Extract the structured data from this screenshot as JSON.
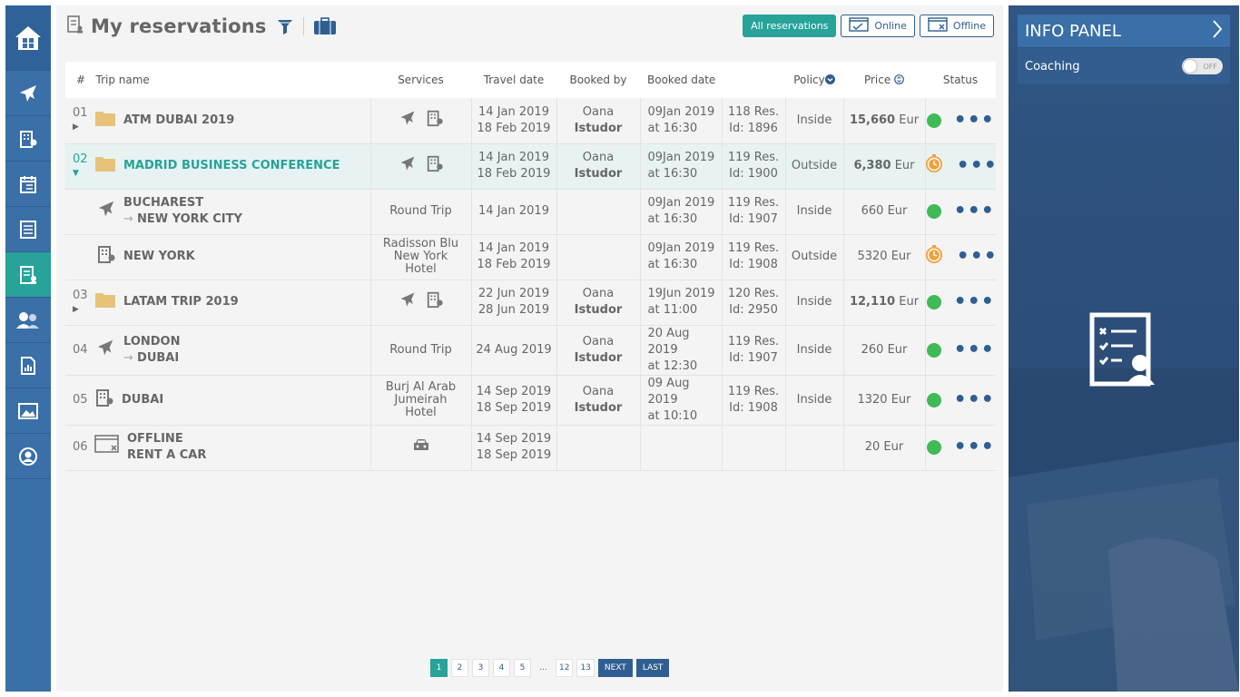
{
  "header": {
    "title": "My reservations",
    "filters": [
      {
        "label": "All reservations",
        "active": true
      },
      {
        "label": "Online",
        "active": false
      },
      {
        "label": "Offline",
        "active": false
      }
    ]
  },
  "table": {
    "columns": {
      "num": "#",
      "trip": "Trip name",
      "services": "Services",
      "travel": "Travel date",
      "booked_by": "Booked by",
      "booked_date": "Booked date",
      "policy": "Policy",
      "price": "Price",
      "status": "Status"
    },
    "rows": [
      {
        "num": "01",
        "name": "ATM DUBAI 2019",
        "travel1": "14 Jan 2019",
        "travel2": "18 Feb 2019",
        "by1": "Oana",
        "by2": "Istudor",
        "bd1": "09Jan 2019",
        "bd2": "at 16:30",
        "res1": "118 Res.",
        "res2": "Id: 1896",
        "policy": "Inside",
        "price": "15,660",
        "currency": "Eur"
      },
      {
        "num": "02",
        "name": "MADRID BUSINESS CONFERENCE",
        "travel1": "14 Jan 2019",
        "travel2": "18 Feb 2019",
        "by1": "Oana",
        "by2": "Istudor",
        "bd1": "09Jan 2019",
        "bd2": "at 16:30",
        "res1": "119 Res.",
        "res2": "Id: 1900",
        "policy": "Outside",
        "price": "6,380",
        "currency": "Eur"
      },
      {
        "name1": "BUCHAREST",
        "name2": "NEW YORK CITY",
        "service": "Round Trip",
        "travel1": "14 Jan 2019",
        "bd1": "09Jan 2019",
        "bd2": "at 16:30",
        "res1": "119 Res.",
        "res2": "Id: 1907",
        "policy": "Inside",
        "price": "660 Eur"
      },
      {
        "name": "NEW YORK",
        "service1": "Radisson Blu",
        "service2": "New York",
        "service3": "Hotel",
        "travel1": "14 Jan 2019",
        "travel2": "18 Feb 2019",
        "bd1": "09Jan 2019",
        "bd2": "at 16:30",
        "res1": "119 Res.",
        "res2": "Id: 1908",
        "policy": "Outside",
        "price": "5320 Eur"
      },
      {
        "num": "03",
        "name": "LATAM TRIP 2019",
        "travel1": "22 Jun 2019",
        "travel2": "28 Jun 2019",
        "by1": "Oana",
        "by2": "Istudor",
        "bd1": "19Jun 2019",
        "bd2": "at 11:00",
        "res1": "120 Res.",
        "res2": "Id: 2950",
        "policy": "Inside",
        "price": "12,110",
        "currency": "Eur"
      },
      {
        "num": "04",
        "name1": "LONDON",
        "name2": "DUBAI",
        "service": "Round Trip",
        "travel1": "24 Aug 2019",
        "by1": "Oana",
        "by2": "Istudor",
        "bd1": "20 Aug 2019",
        "bd2": "at 12:30",
        "res1": "119 Res.",
        "res2": "Id: 1907",
        "policy": "Inside",
        "price": "260 Eur"
      },
      {
        "num": "05",
        "name": "DUBAI",
        "service1": "Burj Al Arab",
        "service2": "Jumeirah",
        "service3": "Hotel",
        "travel1": "14 Sep 2019",
        "travel2": "18 Sep 2019",
        "by1": "Oana",
        "by2": "Istudor",
        "bd1": "09 Aug 2019",
        "bd2": "at 10:10",
        "res1": "119 Res.",
        "res2": "Id: 1908",
        "policy": "Inside",
        "price": "1320 Eur"
      },
      {
        "num": "06",
        "name1": "OFFLINE",
        "name2": "RENT A CAR",
        "travel1": "14 Sep 2019",
        "travel2": "18 Sep 2019",
        "price": "20 Eur"
      }
    ]
  },
  "pagination": {
    "pages": [
      "1",
      "2",
      "3",
      "4",
      "5",
      "...",
      "12",
      "13"
    ],
    "next": "NEXT",
    "last": "LAST",
    "current": "1"
  },
  "info_panel": {
    "title": "INFO PANEL",
    "coaching_label": "Coaching",
    "toggle_text": "OFF"
  },
  "colors": {
    "brand_blue": "#3a6fa8",
    "teal": "#27a39a",
    "outside_red": "#d0174c",
    "ok_green": "#3fba57",
    "warn_orange": "#f0a03c"
  },
  "icons": [
    "home-icon",
    "plane-icon",
    "hotel-icon",
    "calendar-checklist-icon",
    "document-list-icon",
    "reservations-icon",
    "users-icon",
    "report-icon",
    "gallery-icon",
    "profile-icon",
    "filter-icon",
    "suitcase-icon",
    "folder-icon",
    "car-icon",
    "timer-icon",
    "checklist-person-icon"
  ]
}
